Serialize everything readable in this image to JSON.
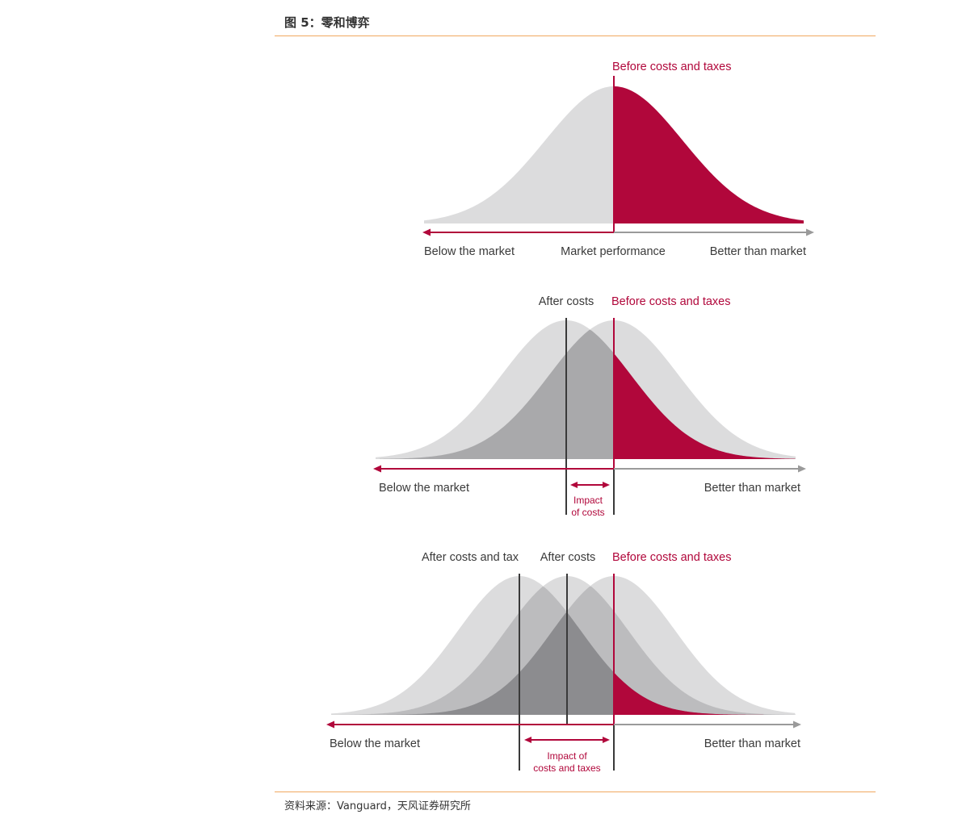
{
  "figure_title": "图 5：零和博弈",
  "source_note": "资料来源：Vanguard，天风证券研究所",
  "colors": {
    "accent_red": "#b1073b",
    "curve_light": "#dcdcdd",
    "curve_mid": "#a9a9ab",
    "curve_dark": "#8c8c8f",
    "axis_gray": "#9a9a9a",
    "text_dark": "#3a3a3a",
    "rule_orange": "#f0a860"
  },
  "panel1": {
    "before_label": "Before costs and taxes",
    "left_label": "Below the market",
    "center_label": "Market performance",
    "right_label": "Better than market"
  },
  "panel2": {
    "after_costs_label": "After costs",
    "before_label": "Before costs and taxes",
    "left_label": "Below the market",
    "right_label": "Better than market",
    "impact_line1": "Impact",
    "impact_line2": "of costs"
  },
  "panel3": {
    "after_costs_tax_label": "After costs and tax",
    "after_costs_label": "After costs",
    "before_label": "Before costs and taxes",
    "left_label": "Below the market",
    "right_label": "Better than market",
    "impact_line1": "Impact of",
    "impact_line2": "costs and taxes"
  }
}
